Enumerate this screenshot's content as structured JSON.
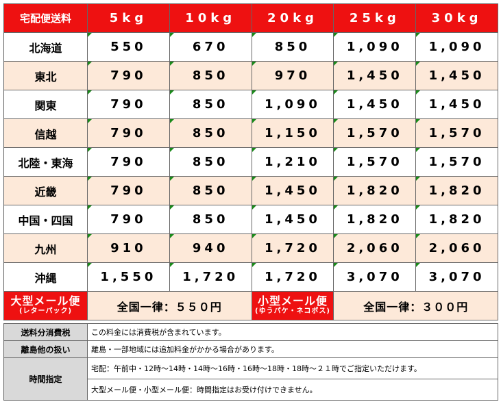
{
  "header": [
    "宅配便送料",
    "5kg",
    "10kg",
    "20kg",
    "25kg",
    "30kg"
  ],
  "rows": [
    [
      "北海道",
      "550",
      "670",
      "850",
      "1,090",
      "1,090"
    ],
    [
      "東北",
      "790",
      "850",
      "970",
      "1,450",
      "1,450"
    ],
    [
      "関東",
      "790",
      "850",
      "1,090",
      "1,450",
      "1,450"
    ],
    [
      "信越",
      "790",
      "850",
      "1,150",
      "1,570",
      "1,570"
    ],
    [
      "北陸・東海",
      "790",
      "850",
      "1,210",
      "1,570",
      "1,570"
    ],
    [
      "近畿",
      "790",
      "850",
      "1,450",
      "1,820",
      "1,820"
    ],
    [
      "中国・四国",
      "790",
      "850",
      "1,450",
      "1,820",
      "1,820"
    ],
    [
      "九州",
      "910",
      "940",
      "1,720",
      "2,060",
      "2,060"
    ],
    [
      "沖縄",
      "1,550",
      "1,720",
      "1,720",
      "3,070",
      "3,070"
    ]
  ],
  "mail": {
    "large_name": "大型メール便",
    "large_sub": "(レターパック)",
    "large_price": "全国一律：５５０円",
    "small_name": "小型メール便",
    "small_sub": "(ゆうパケ・ネコポス)",
    "small_price": "全国一律：３００円"
  },
  "notes": [
    {
      "label": "送料分消費税",
      "lines": [
        "この料金には消費税が含まれています。"
      ]
    },
    {
      "label": "離島他の扱い",
      "lines": [
        "離島・一部地域には追加料金がかかる場合があります。"
      ]
    },
    {
      "label": "時間指定",
      "lines": [
        "宅配：午前中・12時～14時・14時～16時・16時～18時・18時～２１時でご指定いただけます。",
        "大型メール便・小型メール便：時間指定はお受け付けできません。"
      ]
    }
  ]
}
